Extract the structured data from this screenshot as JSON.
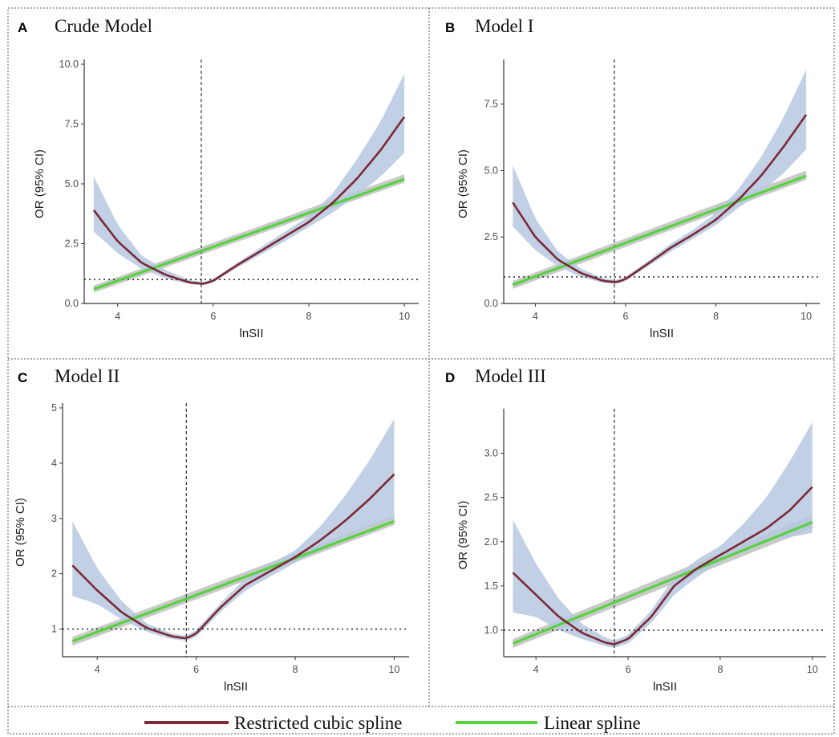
{
  "chart_data": [
    {
      "type": "line",
      "letter": "A",
      "title": "Crude Model",
      "xlabel": "lnSII",
      "ylabel": "OR (95% CI)",
      "xlim": [
        3.3,
        10.3
      ],
      "ylim": [
        0,
        10
      ],
      "xticks": [
        4,
        6,
        8,
        10
      ],
      "yticks": [
        0,
        2.5,
        5,
        7.5,
        10
      ],
      "ytick_labels": [
        "0.0",
        "2.5",
        "5.0",
        "7.5",
        "10.0"
      ],
      "ref_x": 5.75,
      "ref_y": 1,
      "series": [
        {
          "name": "Restricted cubic spline",
          "x": [
            3.5,
            4.0,
            4.5,
            5.0,
            5.5,
            5.8,
            6.0,
            6.5,
            7.0,
            7.5,
            8.0,
            8.5,
            9.0,
            9.5,
            10.0
          ],
          "y": [
            3.9,
            2.6,
            1.7,
            1.2,
            0.88,
            0.82,
            0.95,
            1.6,
            2.2,
            2.8,
            3.4,
            4.2,
            5.2,
            6.4,
            7.8
          ],
          "lower": [
            3.0,
            2.1,
            1.45,
            1.05,
            0.8,
            0.76,
            0.88,
            1.5,
            2.05,
            2.6,
            3.2,
            3.8,
            4.5,
            5.3,
            6.3
          ],
          "upper": [
            5.3,
            3.3,
            2.0,
            1.4,
            0.98,
            0.9,
            1.03,
            1.7,
            2.35,
            3.0,
            3.65,
            4.6,
            6.0,
            7.6,
            9.6
          ]
        },
        {
          "name": "Linear spline",
          "x": [
            3.5,
            10.0
          ],
          "y": [
            0.6,
            5.2
          ],
          "lower": [
            0.45,
            5.05
          ],
          "upper": [
            0.75,
            5.4
          ]
        }
      ]
    },
    {
      "type": "line",
      "letter": "B",
      "title": "Model I",
      "xlabel": "lnSII",
      "ylabel": "OR (95% CI)",
      "xlim": [
        3.3,
        10.3
      ],
      "ylim": [
        0,
        9
      ],
      "xticks": [
        4,
        6,
        8,
        10
      ],
      "yticks": [
        0,
        2.5,
        5,
        7.5
      ],
      "ytick_labels": [
        "0.0",
        "2.5",
        "5.0",
        "7.5"
      ],
      "ref_x": 5.75,
      "ref_y": 1,
      "series": [
        {
          "name": "Restricted cubic spline",
          "x": [
            3.5,
            4.0,
            4.5,
            5.0,
            5.5,
            5.8,
            6.0,
            6.5,
            7.0,
            7.5,
            8.0,
            8.5,
            9.0,
            9.5,
            10.0
          ],
          "y": [
            3.8,
            2.5,
            1.65,
            1.15,
            0.85,
            0.8,
            0.92,
            1.5,
            2.1,
            2.6,
            3.15,
            3.9,
            4.8,
            5.9,
            7.1
          ],
          "lower": [
            2.9,
            2.0,
            1.4,
            1.0,
            0.77,
            0.73,
            0.85,
            1.4,
            1.95,
            2.45,
            2.95,
            3.6,
            4.2,
            4.9,
            5.8
          ],
          "upper": [
            5.2,
            3.2,
            1.95,
            1.32,
            0.95,
            0.88,
            1.0,
            1.6,
            2.25,
            2.78,
            3.4,
            4.3,
            5.5,
            7.0,
            8.8
          ]
        },
        {
          "name": "Linear spline",
          "x": [
            3.5,
            10.0
          ],
          "y": [
            0.7,
            4.8
          ],
          "lower": [
            0.55,
            4.65
          ],
          "upper": [
            0.85,
            5.0
          ]
        }
      ]
    },
    {
      "type": "line",
      "letter": "C",
      "title": "Model II",
      "xlabel": "lnSII",
      "ylabel": "OR (95% CI)",
      "xlim": [
        3.3,
        10.3
      ],
      "ylim": [
        0.5,
        5
      ],
      "xticks": [
        4,
        6,
        8,
        10
      ],
      "yticks": [
        1,
        2,
        3,
        4,
        5
      ],
      "ytick_labels": [
        "1",
        "2",
        "3",
        "4",
        "5"
      ],
      "ref_x": 5.8,
      "ref_y": 1,
      "series": [
        {
          "name": "Restricted cubic spline",
          "x": [
            3.5,
            4.0,
            4.5,
            5.0,
            5.5,
            5.8,
            6.0,
            6.5,
            7.0,
            7.5,
            8.0,
            8.5,
            9.0,
            9.5,
            10.0
          ],
          "y": [
            2.15,
            1.7,
            1.3,
            1.02,
            0.87,
            0.83,
            0.92,
            1.4,
            1.8,
            2.05,
            2.3,
            2.6,
            2.95,
            3.35,
            3.8
          ],
          "lower": [
            1.6,
            1.45,
            1.17,
            0.95,
            0.82,
            0.79,
            0.86,
            1.32,
            1.7,
            1.95,
            2.2,
            2.42,
            2.65,
            2.85,
            3.0
          ],
          "upper": [
            2.95,
            2.1,
            1.5,
            1.1,
            0.92,
            0.88,
            0.98,
            1.48,
            1.92,
            2.18,
            2.42,
            2.85,
            3.4,
            4.05,
            4.8
          ]
        },
        {
          "name": "Linear spline",
          "x": [
            3.5,
            10.0
          ],
          "y": [
            0.78,
            2.95
          ],
          "lower": [
            0.7,
            2.88
          ],
          "upper": [
            0.86,
            3.05
          ]
        }
      ]
    },
    {
      "type": "line",
      "letter": "D",
      "title": "Model III",
      "xlabel": "lnSII",
      "ylabel": "OR (95% CI)",
      "xlim": [
        3.3,
        10.3
      ],
      "ylim": [
        0.7,
        3.45
      ],
      "xticks": [
        4,
        6,
        8,
        10
      ],
      "yticks": [
        1.0,
        1.5,
        2.0,
        2.5,
        3.0
      ],
      "ytick_labels": [
        "1.0",
        "1.5",
        "2.0",
        "2.5",
        "3.0"
      ],
      "ref_x": 5.7,
      "ref_y": 1,
      "series": [
        {
          "name": "Restricted cubic spline",
          "x": [
            3.5,
            4.0,
            4.5,
            5.0,
            5.5,
            5.7,
            6.0,
            6.5,
            7.0,
            7.5,
            8.0,
            8.5,
            9.0,
            9.5,
            10.0
          ],
          "y": [
            1.65,
            1.4,
            1.15,
            0.97,
            0.86,
            0.84,
            0.9,
            1.15,
            1.5,
            1.7,
            1.85,
            2.0,
            2.15,
            2.35,
            2.62
          ],
          "lower": [
            1.2,
            1.15,
            1.0,
            0.9,
            0.82,
            0.8,
            0.85,
            1.08,
            1.4,
            1.6,
            1.78,
            1.9,
            2.0,
            2.05,
            2.1
          ],
          "upper": [
            2.25,
            1.75,
            1.35,
            1.07,
            0.92,
            0.88,
            0.95,
            1.22,
            1.6,
            1.8,
            1.95,
            2.2,
            2.5,
            2.9,
            3.35
          ]
        },
        {
          "name": "Linear spline",
          "x": [
            3.5,
            10.0
          ],
          "y": [
            0.85,
            2.22
          ],
          "lower": [
            0.8,
            2.15
          ],
          "upper": [
            0.9,
            2.3
          ]
        }
      ]
    }
  ],
  "colors": {
    "spline": "#7b2a35",
    "linear": "#57d23f",
    "band_spline": "#b6c8e0",
    "band_linear": "#c3c3c3",
    "axis": "#333333",
    "reference": "#333333"
  },
  "legend": {
    "position": "bottom-center",
    "items": [
      "Restricted cubic spline",
      "Linear spline"
    ]
  }
}
